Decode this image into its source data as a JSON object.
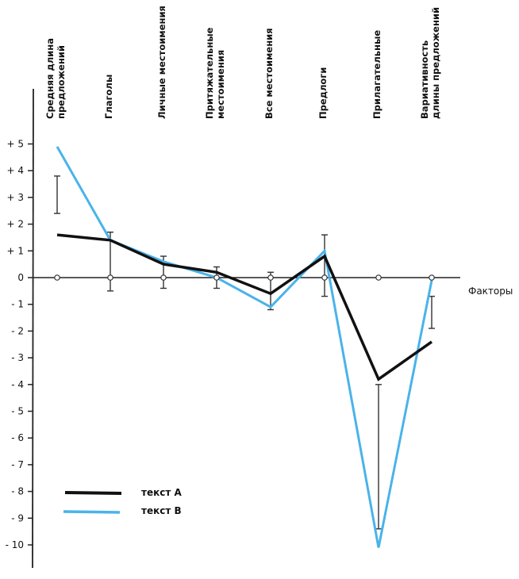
{
  "chart_data": {
    "type": "line",
    "title": "",
    "xlabel": "Факторы",
    "ylabel": "",
    "ylim": [
      -10,
      5
    ],
    "y_ticks": [
      5,
      4,
      3,
      2,
      1,
      0,
      -1,
      -2,
      -3,
      -4,
      -5,
      -6,
      -7,
      -8,
      -9,
      -10
    ],
    "y_tick_labels": [
      "+ 5",
      "+ 4",
      "+ 3",
      "+ 2",
      "+ 1",
      "0",
      "- 1",
      "- 2",
      "- 3",
      "- 4",
      "- 5",
      "- 6",
      "- 7",
      "- 8",
      "- 9",
      "- 10"
    ],
    "categories": [
      [
        "Средняя длина",
        "предложений"
      ],
      [
        "Глаголы"
      ],
      [
        "Личные местоимения"
      ],
      [
        "Притяжательные",
        "местоимения"
      ],
      [
        "Все местоимения"
      ],
      [
        "Предлоги"
      ],
      [
        "Прилагательные"
      ],
      [
        "Вариативность",
        "длины предложений"
      ]
    ],
    "series": [
      {
        "name": "текст A",
        "color": "#111111",
        "values": [
          1.6,
          1.4,
          0.5,
          0.2,
          -0.6,
          0.8,
          -3.8,
          -2.4
        ]
      },
      {
        "name": "текст B",
        "color": "#4ab3ea",
        "values": [
          4.9,
          1.4,
          0.6,
          0.0,
          -1.1,
          1.0,
          -10.1,
          -0.1
        ]
      }
    ],
    "error_bars": [
      {
        "low": 2.4,
        "high": 3.8
      },
      {
        "low": -0.5,
        "high": 1.7
      },
      {
        "low": -0.4,
        "high": 0.8
      },
      {
        "low": -0.4,
        "high": 0.4
      },
      {
        "low": -1.2,
        "high": 0.2
      },
      {
        "low": -0.7,
        "high": 1.6
      },
      {
        "low": -9.4,
        "high": -4.0
      },
      {
        "low": -1.9,
        "high": -0.7
      }
    ],
    "zero_markers": true,
    "grid": false,
    "legend": {
      "position": "bottom-left",
      "entries": [
        "текст A",
        "текст B"
      ]
    }
  }
}
